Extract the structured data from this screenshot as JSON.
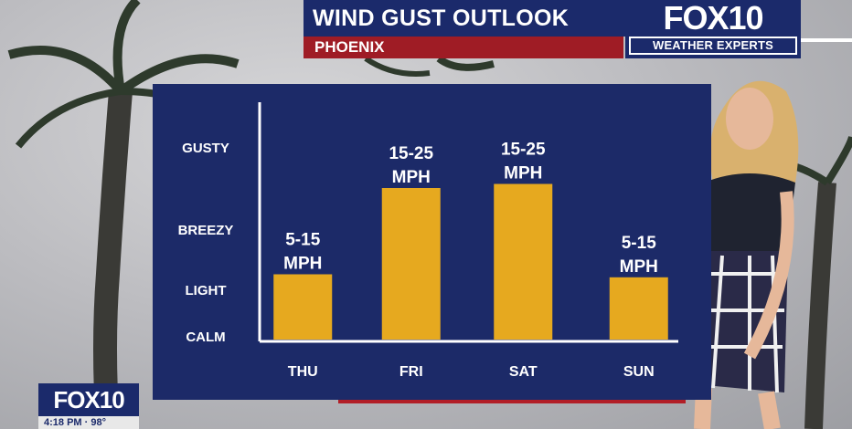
{
  "header": {
    "title": "WIND GUST OUTLOOK",
    "city": "PHOENIX",
    "logo": "FOX10",
    "logo_sub": "WEATHER EXPERTS"
  },
  "bug": {
    "logo": "FOX10",
    "time": "4:18 PM · 98°"
  },
  "colors": {
    "panel": "#1c2a68",
    "bar": "#e6a91f",
    "title_bar": "#1b2a6b",
    "city_bar": "#9f1c25"
  },
  "chart_data": {
    "type": "bar",
    "title": "WIND GUST OUTLOOK",
    "categories": [
      "THU",
      "FRI",
      "SAT",
      "SUN"
    ],
    "y_levels": [
      "CALM",
      "LIGHT",
      "BREEZY",
      "GUSTY"
    ],
    "values": [
      1.25,
      2.5,
      2.55,
      1.2
    ],
    "value_labels": [
      [
        "5-15",
        "MPH"
      ],
      [
        "15-25",
        "MPH"
      ],
      [
        "15-25",
        "MPH"
      ],
      [
        "5-15",
        "MPH"
      ]
    ],
    "ylim": [
      0,
      4
    ],
    "grid": false
  }
}
